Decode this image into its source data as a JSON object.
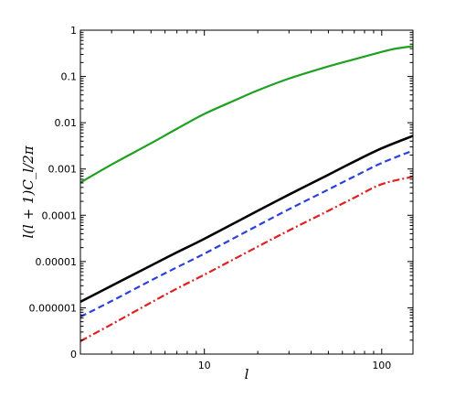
{
  "chart_data": {
    "type": "line",
    "xlabel": "l",
    "ylabel": "l(l + 1)C_l/2π",
    "xscale": "log",
    "yscale": "log",
    "xlim": [
      2,
      150
    ],
    "ylim": [
      1e-07,
      1
    ],
    "grid": false,
    "legend": "none",
    "x_tick_labels": [
      {
        "value": 10,
        "label": "10"
      },
      {
        "value": 100,
        "label": "100"
      }
    ],
    "y_tick_labels": [
      {
        "value": 1,
        "label": "1"
      },
      {
        "value": 0.1,
        "label": "0.1"
      },
      {
        "value": 0.01,
        "label": "0.01"
      },
      {
        "value": 0.001,
        "label": "0.001"
      },
      {
        "value": 0.0001,
        "label": "0.0001"
      },
      {
        "value": 1e-05,
        "label": "0.00001"
      },
      {
        "value": 1e-06,
        "label": "0.000001"
      },
      {
        "value": 1e-07,
        "label": "0"
      }
    ],
    "series": [
      {
        "color": "#1fa01f",
        "style": "solid",
        "points": [
          [
            2,
            0.00051
          ],
          [
            3,
            0.00125
          ],
          [
            5,
            0.0036
          ],
          [
            7,
            0.0074
          ],
          [
            10,
            0.0155
          ],
          [
            15,
            0.031
          ],
          [
            20,
            0.05
          ],
          [
            30,
            0.09
          ],
          [
            50,
            0.165
          ],
          [
            70,
            0.235
          ],
          [
            100,
            0.34
          ],
          [
            120,
            0.4
          ],
          [
            150,
            0.45
          ]
        ]
      },
      {
        "color": "#000000",
        "style": "solid",
        "points": [
          [
            2,
            1.35e-06
          ],
          [
            3,
            3e-06
          ],
          [
            5,
            8.2e-06
          ],
          [
            7,
            1.58e-05
          ],
          [
            10,
            3.1e-05
          ],
          [
            20,
            0.000125
          ],
          [
            30,
            0.00028
          ],
          [
            50,
            0.00075
          ],
          [
            70,
            0.00145
          ],
          [
            100,
            0.0028
          ],
          [
            150,
            0.0052
          ]
        ]
      },
      {
        "color": "#2a3fe0",
        "style": "dashed",
        "points": [
          [
            2,
            6.4e-07
          ],
          [
            3,
            1.4e-06
          ],
          [
            5,
            3.9e-06
          ],
          [
            7,
            7.5e-06
          ],
          [
            10,
            1.48e-05
          ],
          [
            20,
            6e-05
          ],
          [
            30,
            0.000135
          ],
          [
            50,
            0.00036
          ],
          [
            70,
            0.00069
          ],
          [
            100,
            0.00135
          ],
          [
            150,
            0.0025
          ]
        ]
      },
      {
        "color": "#e02020",
        "style": "dashdot",
        "points": [
          [
            2,
            1.9e-07
          ],
          [
            3,
            4.4e-07
          ],
          [
            5,
            1.3e-06
          ],
          [
            7,
            2.6e-06
          ],
          [
            10,
            5.2e-06
          ],
          [
            20,
            2.1e-05
          ],
          [
            30,
            4.7e-05
          ],
          [
            50,
            0.000125
          ],
          [
            70,
            0.00024
          ],
          [
            100,
            0.00047
          ],
          [
            150,
            0.00068
          ]
        ]
      }
    ]
  }
}
